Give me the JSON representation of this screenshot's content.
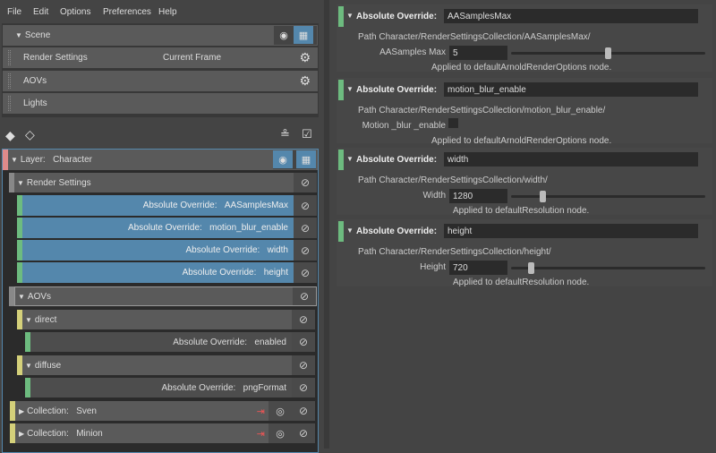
{
  "menu": [
    "File",
    "Edit",
    "Options",
    "Preferences",
    "Help"
  ],
  "scene": {
    "title": "Scene",
    "items": [
      {
        "label": "Render Settings",
        "extra": "Current Frame"
      },
      {
        "label": "AOVs",
        "extra": ""
      },
      {
        "label": "Lights",
        "extra": ""
      }
    ]
  },
  "layer": {
    "prefix": "Layer:",
    "name": "Character"
  },
  "tree": {
    "render_settings": "Render Settings",
    "overrides": [
      {
        "prefix": "Absolute Override:",
        "name": "AASamplesMax"
      },
      {
        "prefix": "Absolute Override:",
        "name": "motion_blur_enable"
      },
      {
        "prefix": "Absolute Override:",
        "name": "width"
      },
      {
        "prefix": "Absolute Override:",
        "name": "height"
      }
    ],
    "aovs": "AOVs",
    "direct": "direct",
    "direct_override": {
      "prefix": "Absolute Override:",
      "name": "enabled"
    },
    "diffuse": "diffuse",
    "diffuse_override": {
      "prefix": "Absolute Override:",
      "name": "pngFormat"
    },
    "collections": [
      {
        "prefix": "Collection:",
        "name": "Sven"
      },
      {
        "prefix": "Collection:",
        "name": "Minion"
      }
    ]
  },
  "colors": {
    "layer": "#e08a8a",
    "override": "#6dbb7f",
    "collection": "#d4d07a",
    "selected": "#5487ac"
  },
  "details": [
    {
      "header": "Absolute Override:",
      "name": "AASamplesMax",
      "path": "Path  Character/RenderSettingsCollection/AASamplesMax/",
      "attr": "AASamples Max",
      "value": "5",
      "slider_fraction": 0.5,
      "applied": "Applied to defaultArnoldRenderOptions node."
    },
    {
      "header": "Absolute Override:",
      "name": "motion_blur_enable",
      "path": "Path  Character/RenderSettingsCollection/motion_blur_enable/",
      "attr": "Motion _blur _enable",
      "checked": false,
      "applied": "Applied to defaultArnoldRenderOptions node."
    },
    {
      "header": "Absolute Override:",
      "name": "width",
      "path": "Path  Character/RenderSettingsCollection/width/",
      "attr": "Width",
      "value": "1280",
      "slider_fraction": 0.15,
      "applied": "Applied to defaultResolution node."
    },
    {
      "header": "Absolute Override:",
      "name": "height",
      "path": "Path  Character/RenderSettingsCollection/height/",
      "attr": "Height",
      "value": "720",
      "slider_fraction": 0.09,
      "applied": "Applied to defaultResolution node."
    }
  ]
}
